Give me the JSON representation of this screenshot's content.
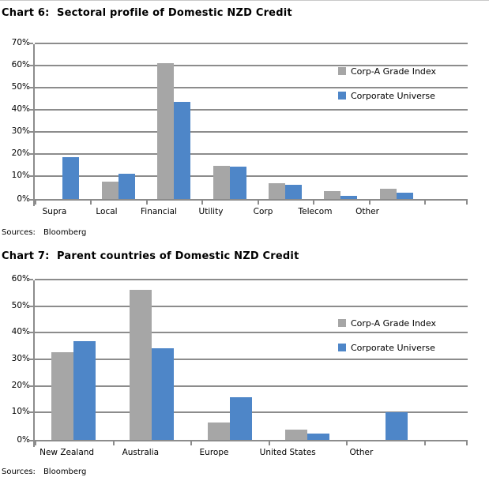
{
  "page": {
    "background": "#ffffff",
    "top_border_color": "#c9c9c9"
  },
  "colors": {
    "series_gray": "#a6a6a6",
    "series_blue": "#4e86c8",
    "gridline": "#8c8c8c",
    "text": "#000000"
  },
  "chart_data": [
    {
      "type": "bar",
      "title": "Chart 6:  Sectoral profile of Domestic NZD Credit",
      "categories": [
        "Supra",
        "Local",
        "Financial",
        "Utility",
        "Corp",
        "Telecom",
        "Other"
      ],
      "series": [
        {
          "name": "Corp-A Grade Index",
          "color": "#a6a6a6",
          "values": [
            0,
            8,
            61.5,
            15,
            7,
            3.5,
            4.5
          ]
        },
        {
          "name": "Corporate Universe",
          "color": "#4e86c8",
          "values": [
            19,
            11.5,
            44,
            14.5,
            6.5,
            1.5,
            3
          ]
        }
      ],
      "ylim": [
        0,
        70
      ],
      "ytick_step": 10,
      "ytick_labels": [
        "0%",
        "10%",
        "20%",
        "30%",
        "40%",
        "50%",
        "60%",
        "70%"
      ],
      "grid": true,
      "legend_position": "inside-top-right",
      "sources_label": "Sources:",
      "sources_value": "Bloomberg"
    },
    {
      "type": "bar",
      "title": "Chart 7:  Parent countries of Domestic NZD Credit",
      "categories": [
        "New Zealand",
        "Australia",
        "Europe",
        "United States",
        "Other"
      ],
      "series": [
        {
          "name": "Corp-A Grade Index",
          "color": "#a6a6a6",
          "values": [
            33,
            56.5,
            6.5,
            4,
            0
          ]
        },
        {
          "name": "Corporate Universe",
          "color": "#4e86c8",
          "values": [
            37,
            34.5,
            16,
            2.5,
            10.5
          ]
        }
      ],
      "ylim": [
        0,
        60
      ],
      "ytick_step": 10,
      "ytick_labels": [
        "0%",
        "10%",
        "20%",
        "30%",
        "40%",
        "50%",
        "60%"
      ],
      "grid": true,
      "legend_position": "inside-top-right",
      "sources_label": "Sources:",
      "sources_value": "Bloomberg"
    }
  ]
}
